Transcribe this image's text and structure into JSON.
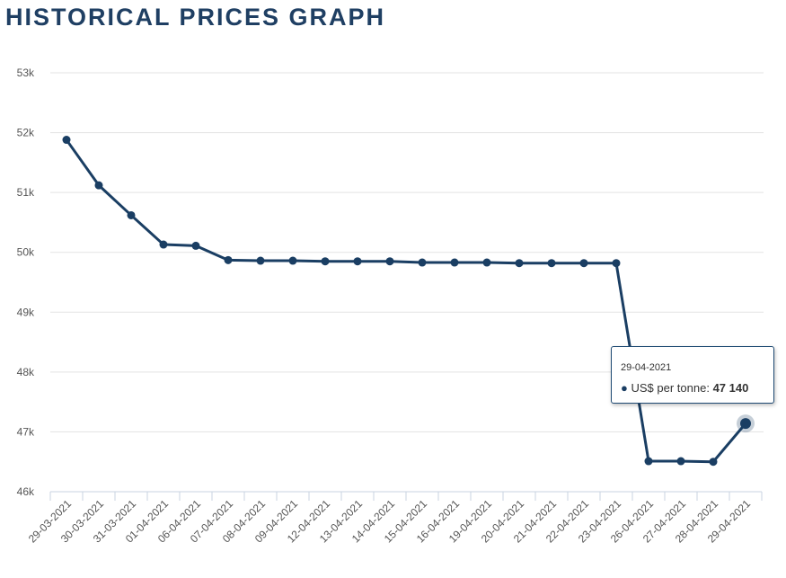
{
  "chart_data": {
    "type": "line",
    "title": "HISTORICAL PRICES GRAPH",
    "xlabel": "",
    "ylabel": "",
    "ylim": [
      46000,
      53000
    ],
    "yticks": [
      "46k",
      "47k",
      "48k",
      "49k",
      "50k",
      "51k",
      "52k",
      "53k"
    ],
    "grid": true,
    "line_color": "#1a3e63",
    "categories": [
      "29-03-2021",
      "30-03-2021",
      "31-03-2021",
      "01-04-2021",
      "06-04-2021",
      "07-04-2021",
      "08-04-2021",
      "09-04-2021",
      "12-04-2021",
      "13-04-2021",
      "14-04-2021",
      "15-04-2021",
      "16-04-2021",
      "19-04-2021",
      "20-04-2021",
      "21-04-2021",
      "22-04-2021",
      "23-04-2021",
      "26-04-2021",
      "27-04-2021",
      "28-04-2021",
      "29-04-2021"
    ],
    "series": [
      {
        "name": "US$ per tonne",
        "values": [
          51880,
          51120,
          50620,
          50130,
          50110,
          49870,
          49860,
          49860,
          49850,
          49850,
          49850,
          49830,
          49830,
          49830,
          49820,
          49820,
          49820,
          49820,
          46510,
          46510,
          46500,
          47140
        ]
      }
    ],
    "tooltip": {
      "date": "29-04-2021",
      "series": "US$ per tonne:",
      "value": "47 140"
    }
  }
}
